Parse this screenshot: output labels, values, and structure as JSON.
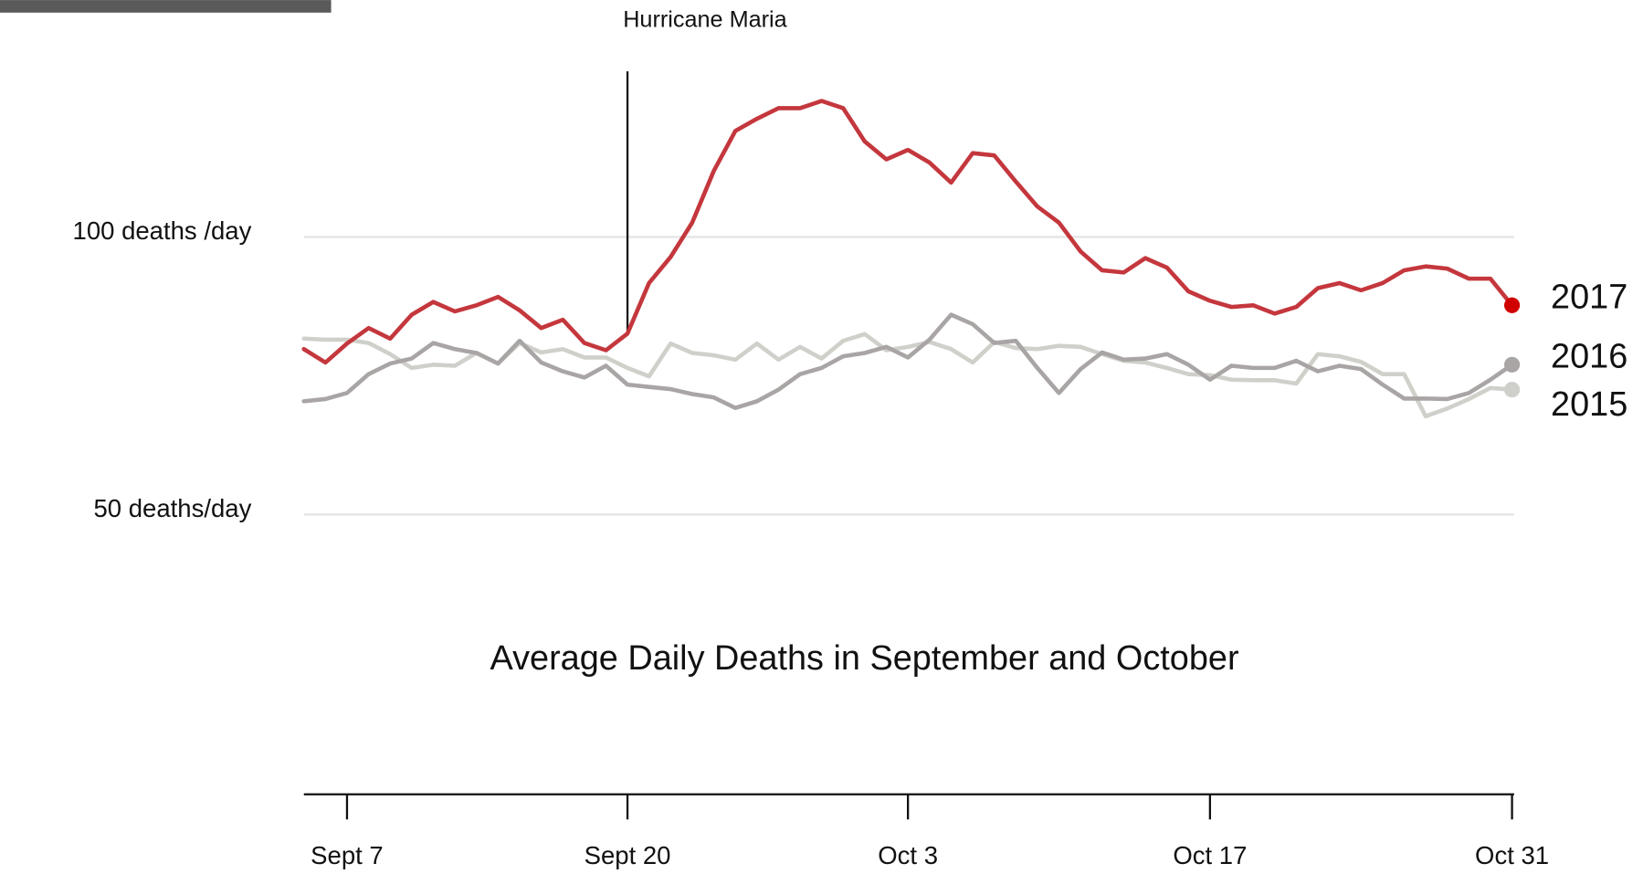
{
  "chart_data": {
    "type": "line",
    "title": "Average Daily Deaths in September and October",
    "annotations": [
      {
        "text": "Hurricane Maria",
        "x": "Sept 20"
      }
    ],
    "categories": [
      null,
      null,
      "Sept 7",
      null,
      null,
      null,
      null,
      null,
      null,
      null,
      null,
      null,
      null,
      null,
      null,
      "Sept 20",
      null,
      null,
      null,
      null,
      null,
      null,
      null,
      null,
      null,
      null,
      null,
      null,
      "Oct 3",
      null,
      null,
      null,
      null,
      null,
      null,
      null,
      null,
      null,
      null,
      null,
      null,
      null,
      "Oct 17",
      null,
      null,
      null,
      null,
      null,
      null,
      null,
      null,
      null,
      null,
      null,
      null,
      null,
      "Oct 31"
    ],
    "ylim": [
      48,
      130
    ],
    "yticks": [
      {
        "value": 100,
        "label": "100 deaths /day"
      },
      {
        "value": 50,
        "label": "50 deaths/day"
      }
    ],
    "grid": true,
    "series": [
      {
        "name": "2017",
        "color": "#c4373d",
        "values": [
          79.8,
          77.4,
          80.8,
          83.6,
          81.7,
          86.0,
          88.3,
          86.6,
          87.7,
          89.2,
          86.8,
          83.6,
          85.1,
          80.9,
          79.6,
          82.6,
          91.7,
          96.4,
          102.6,
          111.9,
          119.1,
          121.3,
          123.2,
          123.2,
          124.5,
          123.2,
          117.2,
          114.0,
          115.7,
          113.4,
          109.8,
          115.1,
          114.7,
          110.0,
          105.5,
          102.6,
          97.4,
          94.0,
          93.6,
          96.2,
          94.5,
          90.2,
          88.5,
          87.4,
          87.7,
          86.2,
          87.4,
          90.8,
          91.7,
          90.4,
          91.7,
          94.0,
          94.7,
          94.3,
          92.5,
          92.5,
          87.7
        ]
      },
      {
        "name": "2016",
        "color": "#a9a5a5",
        "values": [
          70.4,
          70.8,
          71.9,
          75.3,
          77.2,
          78.1,
          80.9,
          79.8,
          79.1,
          77.2,
          81.3,
          77.4,
          75.8,
          74.7,
          76.8,
          73.4,
          73.0,
          72.6,
          71.7,
          71.1,
          69.2,
          70.4,
          72.5,
          75.3,
          76.4,
          78.5,
          79.1,
          80.2,
          78.3,
          81.5,
          86.0,
          84.3,
          80.9,
          81.3,
          76.4,
          71.9,
          76.2,
          79.2,
          77.9,
          78.1,
          78.9,
          77.0,
          74.3,
          76.8,
          76.4,
          76.4,
          77.7,
          75.8,
          76.8,
          76.2,
          73.4,
          70.9,
          70.9,
          70.8,
          71.9,
          74.3,
          77.0
        ]
      },
      {
        "name": "2015",
        "color": "#d0d0cb",
        "values": [
          81.7,
          81.5,
          81.5,
          80.9,
          78.9,
          76.4,
          77.0,
          76.8,
          79.1,
          77.2,
          80.9,
          79.2,
          79.8,
          78.3,
          78.3,
          76.4,
          74.9,
          80.8,
          79.1,
          78.7,
          77.9,
          80.8,
          77.9,
          80.2,
          78.1,
          81.3,
          82.5,
          79.6,
          80.2,
          81.1,
          79.8,
          77.4,
          81.1,
          80.0,
          79.8,
          80.4,
          80.2,
          78.9,
          77.7,
          77.4,
          76.4,
          75.3,
          75.1,
          74.3,
          74.2,
          74.2,
          73.6,
          78.9,
          78.5,
          77.5,
          75.3,
          75.3,
          67.7,
          69.1,
          70.8,
          72.8,
          72.5
        ]
      }
    ]
  }
}
